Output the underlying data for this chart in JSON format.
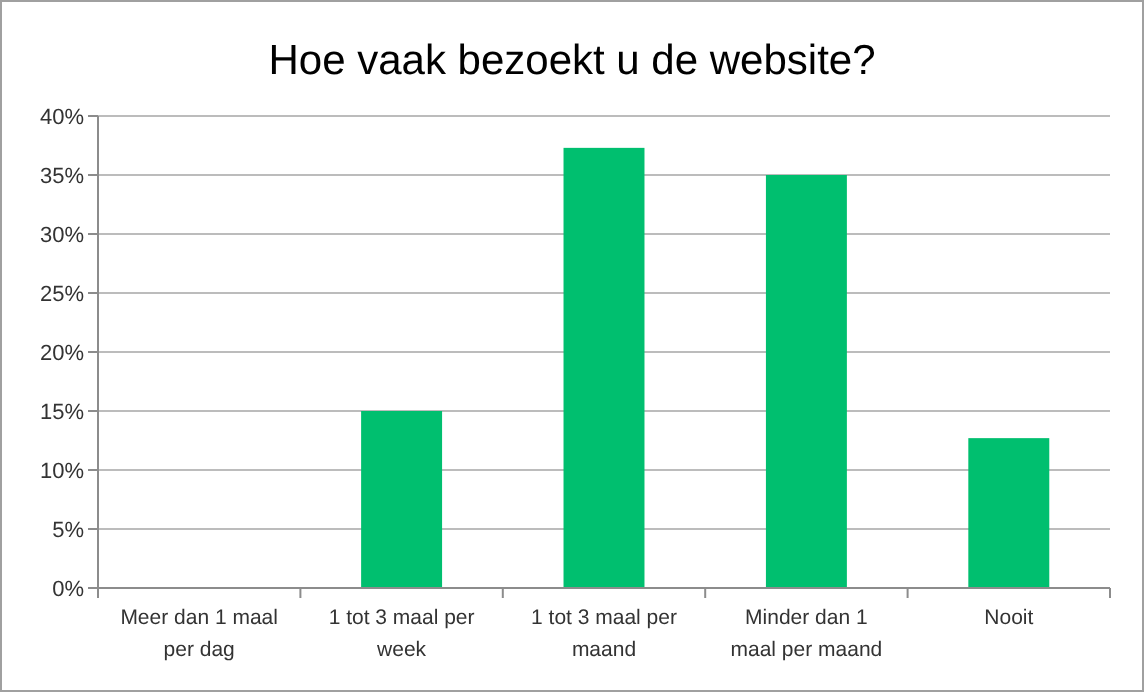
{
  "chart_data": {
    "type": "bar",
    "title": "Hoe vaak bezoekt u de website?",
    "categories": [
      "Meer dan 1 maal per dag",
      "1 tot 3 maal per week",
      "1 tot 3 maal per maand",
      "Minder dan 1 maal per maand",
      "Nooit"
    ],
    "values": [
      0,
      15,
      37.3,
      35,
      12.7
    ],
    "color": "#00bf6f",
    "ylim": [
      0,
      40
    ],
    "yticks": [
      {
        "value": 0,
        "label": "0%"
      },
      {
        "value": 5,
        "label": "5%"
      },
      {
        "value": 10,
        "label": "10%"
      },
      {
        "value": 15,
        "label": "15%"
      },
      {
        "value": 20,
        "label": "20%"
      },
      {
        "value": 25,
        "label": "25%"
      },
      {
        "value": 30,
        "label": "30%"
      },
      {
        "value": 35,
        "label": "35%"
      },
      {
        "value": 40,
        "label": "40%"
      }
    ],
    "grid": "y"
  }
}
